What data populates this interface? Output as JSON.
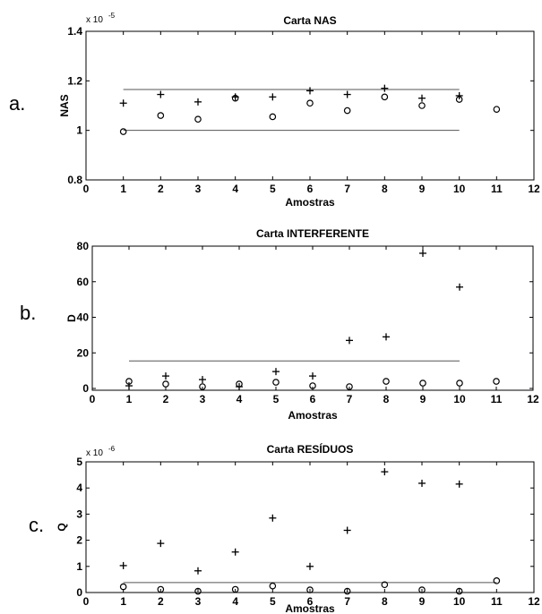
{
  "chart_data": [
    {
      "type": "scatter",
      "panel_label": "a.",
      "title": "Carta NAS",
      "xlabel": "Amostras",
      "ylabel": "NAS",
      "exponent_label": "x 10",
      "exponent_power": "-5",
      "xlim": [
        0,
        12
      ],
      "ylim": [
        0.8,
        1.4
      ],
      "xticks": [
        0,
        1,
        2,
        3,
        4,
        5,
        6,
        7,
        8,
        9,
        10,
        11,
        12
      ],
      "yticks": [
        0.8,
        1,
        1.2,
        1.4
      ],
      "ytick_labels": [
        "0.8",
        "1",
        "1.2",
        "1.4"
      ],
      "grid": false,
      "series": [
        {
          "marker": "plus",
          "x": [
            1,
            2,
            3,
            4,
            5,
            6,
            7,
            8,
            9,
            10
          ],
          "y": [
            1.11,
            1.145,
            1.115,
            1.135,
            1.135,
            1.16,
            1.145,
            1.17,
            1.13,
            1.14
          ]
        },
        {
          "marker": "circle",
          "x": [
            1,
            2,
            3,
            4,
            5,
            6,
            7,
            8,
            9,
            10,
            11
          ],
          "y": [
            0.995,
            1.06,
            1.045,
            1.13,
            1.055,
            1.11,
            1.08,
            1.135,
            1.1,
            1.125,
            1.085
          ]
        }
      ],
      "limit_lines": [
        {
          "y": 1.165,
          "x": [
            1,
            10
          ]
        },
        {
          "y": 1.0,
          "x": [
            1,
            10
          ]
        }
      ]
    },
    {
      "type": "scatter",
      "panel_label": "b.",
      "title": "Carta INTERFERENTE",
      "xlabel": "Amostras",
      "ylabel": "D",
      "exponent_label": "",
      "exponent_power": "",
      "xlim": [
        0,
        12
      ],
      "ylim": [
        -1,
        80
      ],
      "xticks": [
        0,
        1,
        2,
        3,
        4,
        5,
        6,
        7,
        8,
        9,
        10,
        11,
        12
      ],
      "yticks": [
        0,
        20,
        40,
        60,
        80
      ],
      "ytick_labels": [
        "0",
        "20",
        "40",
        "60",
        "80"
      ],
      "grid": false,
      "series": [
        {
          "marker": "plus",
          "x": [
            1,
            2,
            3,
            4,
            5,
            6,
            7,
            8,
            9,
            10
          ],
          "y": [
            1.5,
            7,
            5,
            1,
            9.5,
            7,
            27,
            29,
            76,
            57
          ]
        },
        {
          "marker": "circle",
          "x": [
            1,
            2,
            3,
            4,
            5,
            6,
            7,
            8,
            9,
            10,
            11
          ],
          "y": [
            4,
            2.5,
            1,
            2.5,
            3.5,
            1.5,
            1,
            4,
            3,
            3,
            4
          ]
        }
      ],
      "limit_lines": [
        {
          "y": 15.5,
          "x": [
            1,
            10
          ]
        }
      ]
    },
    {
      "type": "scatter",
      "panel_label": "c.",
      "title": "Carta RESÍDUOS",
      "xlabel": "Amostras",
      "ylabel": "Q",
      "exponent_label": "x 10",
      "exponent_power": "-6",
      "xlim": [
        0,
        12
      ],
      "ylim": [
        0,
        5
      ],
      "xticks": [
        0,
        1,
        2,
        3,
        4,
        5,
        6,
        7,
        8,
        9,
        10,
        11,
        12
      ],
      "yticks": [
        0,
        1,
        2,
        3,
        4,
        5
      ],
      "ytick_labels": [
        "0",
        "1",
        "2",
        "3",
        "4",
        "5"
      ],
      "grid": false,
      "series": [
        {
          "marker": "plus",
          "x": [
            1,
            2,
            3,
            4,
            5,
            6,
            7,
            8,
            9,
            10
          ],
          "y": [
            1.03,
            1.88,
            0.83,
            1.55,
            2.85,
            1.0,
            2.38,
            4.62,
            4.18,
            4.15
          ]
        },
        {
          "marker": "circle",
          "x": [
            1,
            2,
            3,
            4,
            5,
            6,
            7,
            8,
            9,
            10,
            11
          ],
          "y": [
            0.22,
            0.12,
            0.05,
            0.12,
            0.25,
            0.1,
            0.05,
            0.3,
            0.1,
            0.05,
            0.45
          ]
        }
      ],
      "limit_lines": [
        {
          "y": 0.38,
          "x": [
            1,
            11
          ]
        }
      ]
    }
  ]
}
